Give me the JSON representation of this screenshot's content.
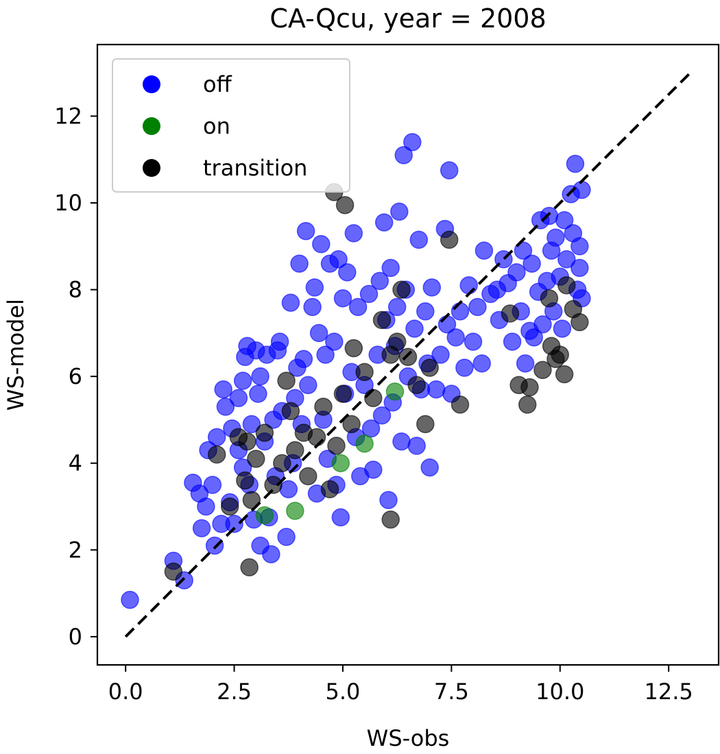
{
  "chart_data": {
    "type": "scatter",
    "title": "CA-Qcu, year = 2008",
    "xlabel": "WS-obs",
    "ylabel": "WS-model",
    "xlim": [
      -0.65,
      13.65
    ],
    "ylim": [
      -0.65,
      13.65
    ],
    "xticks": [
      0.0,
      2.5,
      5.0,
      7.5,
      10.0,
      12.5
    ],
    "xtick_labels": [
      "0.0",
      "2.5",
      "5.0",
      "7.5",
      "10.0",
      "12.5"
    ],
    "yticks": [
      0,
      2,
      4,
      6,
      8,
      10,
      12
    ],
    "ytick_labels": [
      "0",
      "2",
      "4",
      "6",
      "8",
      "10",
      "12"
    ],
    "grid": false,
    "legend_position": "top-left",
    "reference_line": {
      "style": "dashed",
      "color": "#000000",
      "x": [
        0,
        13
      ],
      "y": [
        0,
        13
      ]
    },
    "marker_alpha": 0.6,
    "series": [
      {
        "name": "off",
        "color": "#0000ff",
        "points": [
          [
            0.1,
            0.85
          ],
          [
            1.1,
            1.75
          ],
          [
            1.35,
            1.3
          ],
          [
            1.55,
            3.55
          ],
          [
            1.7,
            3.3
          ],
          [
            1.75,
            2.5
          ],
          [
            1.85,
            3.0
          ],
          [
            1.9,
            4.3
          ],
          [
            2.0,
            3.5
          ],
          [
            2.05,
            2.1
          ],
          [
            2.1,
            4.6
          ],
          [
            2.2,
            2.6
          ],
          [
            2.25,
            5.7
          ],
          [
            2.3,
            5.3
          ],
          [
            2.4,
            3.1
          ],
          [
            2.45,
            4.8
          ],
          [
            2.5,
            2.6
          ],
          [
            2.6,
            5.5
          ],
          [
            2.6,
            4.3
          ],
          [
            2.7,
            3.9
          ],
          [
            2.7,
            5.9
          ],
          [
            2.75,
            6.45
          ],
          [
            2.8,
            6.7
          ],
          [
            2.85,
            3.5
          ],
          [
            2.9,
            4.9
          ],
          [
            2.95,
            2.7
          ],
          [
            3.0,
            6.6
          ],
          [
            3.05,
            5.6
          ],
          [
            3.1,
            6.0
          ],
          [
            3.1,
            2.1
          ],
          [
            3.2,
            4.5
          ],
          [
            3.25,
            6.5
          ],
          [
            3.3,
            2.75
          ],
          [
            3.35,
            1.9
          ],
          [
            3.4,
            5.0
          ],
          [
            3.45,
            3.7
          ],
          [
            3.5,
            6.6
          ],
          [
            3.55,
            6.8
          ],
          [
            3.6,
            5.2
          ],
          [
            3.7,
            2.3
          ],
          [
            3.75,
            3.4
          ],
          [
            3.8,
            7.7
          ],
          [
            3.85,
            4.0
          ],
          [
            3.9,
            5.5
          ],
          [
            3.95,
            6.2
          ],
          [
            4.0,
            8.6
          ],
          [
            4.05,
            4.9
          ],
          [
            4.1,
            6.4
          ],
          [
            4.15,
            9.35
          ],
          [
            4.2,
            5.8
          ],
          [
            4.3,
            7.6
          ],
          [
            4.35,
            8.05
          ],
          [
            4.4,
            3.3
          ],
          [
            4.45,
            7.0
          ],
          [
            4.5,
            9.05
          ],
          [
            4.55,
            5.0
          ],
          [
            4.6,
            6.5
          ],
          [
            4.65,
            4.1
          ],
          [
            4.7,
            8.6
          ],
          [
            4.8,
            6.8
          ],
          [
            4.85,
            3.5
          ],
          [
            4.9,
            8.7
          ],
          [
            4.95,
            2.75
          ],
          [
            5.0,
            7.8
          ],
          [
            5.05,
            5.6
          ],
          [
            5.1,
            8.4
          ],
          [
            5.2,
            6.1
          ],
          [
            5.25,
            9.3
          ],
          [
            5.3,
            4.6
          ],
          [
            5.35,
            7.6
          ],
          [
            5.4,
            3.7
          ],
          [
            5.5,
            5.8
          ],
          [
            5.6,
            7.9
          ],
          [
            5.65,
            4.8
          ],
          [
            5.7,
            3.85
          ],
          [
            5.8,
            6.5
          ],
          [
            5.85,
            8.2
          ],
          [
            5.9,
            5.1
          ],
          [
            5.95,
            9.55
          ],
          [
            6.0,
            7.3
          ],
          [
            6.05,
            3.15
          ],
          [
            6.1,
            8.5
          ],
          [
            6.15,
            5.4
          ],
          [
            6.2,
            6.7
          ],
          [
            6.25,
            7.6
          ],
          [
            6.3,
            9.8
          ],
          [
            6.35,
            4.5
          ],
          [
            6.4,
            11.1
          ],
          [
            6.45,
            8.0
          ],
          [
            6.5,
            6.0
          ],
          [
            6.6,
            11.4
          ],
          [
            6.65,
            7.1
          ],
          [
            6.7,
            4.4
          ],
          [
            6.75,
            9.15
          ],
          [
            6.8,
            5.7
          ],
          [
            6.9,
            7.5
          ],
          [
            6.95,
            6.3
          ],
          [
            7.0,
            3.9
          ],
          [
            7.05,
            8.05
          ],
          [
            7.15,
            5.7
          ],
          [
            7.25,
            6.5
          ],
          [
            7.35,
            9.4
          ],
          [
            7.4,
            7.2
          ],
          [
            7.45,
            10.75
          ],
          [
            7.5,
            5.6
          ],
          [
            7.6,
            6.9
          ],
          [
            7.7,
            7.5
          ],
          [
            7.8,
            6.2
          ],
          [
            7.9,
            8.1
          ],
          [
            8.0,
            6.8
          ],
          [
            8.1,
            7.6
          ],
          [
            8.2,
            6.3
          ],
          [
            8.25,
            8.9
          ],
          [
            8.4,
            7.9
          ],
          [
            8.55,
            8.0
          ],
          [
            8.6,
            7.3
          ],
          [
            8.7,
            8.7
          ],
          [
            8.8,
            8.15
          ],
          [
            8.9,
            6.8
          ],
          [
            9.0,
            8.4
          ],
          [
            9.1,
            7.5
          ],
          [
            9.15,
            8.9
          ],
          [
            9.2,
            6.3
          ],
          [
            9.3,
            7.05
          ],
          [
            9.35,
            8.6
          ],
          [
            9.4,
            6.9
          ],
          [
            9.5,
            7.95
          ],
          [
            9.55,
            9.6
          ],
          [
            9.6,
            7.2
          ],
          [
            9.7,
            8.2
          ],
          [
            9.75,
            9.7
          ],
          [
            9.8,
            8.9
          ],
          [
            9.85,
            7.5
          ],
          [
            9.9,
            9.2
          ],
          [
            10.0,
            8.3
          ],
          [
            10.05,
            7.1
          ],
          [
            10.1,
            9.6
          ],
          [
            10.15,
            8.7
          ],
          [
            10.25,
            10.2
          ],
          [
            10.3,
            9.3
          ],
          [
            10.35,
            10.9
          ],
          [
            10.4,
            8.0
          ],
          [
            10.45,
            9.0
          ],
          [
            10.5,
            10.3
          ],
          [
            10.5,
            7.8
          ],
          [
            10.45,
            8.5
          ]
        ]
      },
      {
        "name": "on",
        "color": "#008000",
        "points": [
          [
            3.2,
            2.8
          ],
          [
            3.9,
            2.9
          ],
          [
            4.95,
            4.0
          ],
          [
            5.5,
            4.45
          ],
          [
            6.2,
            5.65
          ]
        ]
      },
      {
        "name": "transition",
        "color": "#000000",
        "points": [
          [
            1.1,
            1.5
          ],
          [
            2.1,
            4.2
          ],
          [
            2.4,
            3.0
          ],
          [
            2.6,
            4.6
          ],
          [
            2.75,
            3.6
          ],
          [
            2.8,
            4.5
          ],
          [
            2.85,
            1.6
          ],
          [
            2.9,
            3.15
          ],
          [
            3.0,
            4.1
          ],
          [
            3.2,
            4.7
          ],
          [
            3.4,
            3.5
          ],
          [
            3.6,
            4.0
          ],
          [
            3.7,
            5.9
          ],
          [
            3.8,
            5.2
          ],
          [
            3.9,
            4.3
          ],
          [
            4.1,
            4.7
          ],
          [
            4.2,
            3.7
          ],
          [
            4.4,
            4.6
          ],
          [
            4.55,
            5.3
          ],
          [
            4.7,
            3.4
          ],
          [
            4.8,
            10.25
          ],
          [
            4.85,
            4.4
          ],
          [
            5.0,
            5.6
          ],
          [
            5.05,
            9.95
          ],
          [
            5.2,
            4.9
          ],
          [
            5.25,
            6.65
          ],
          [
            5.5,
            6.1
          ],
          [
            5.7,
            5.5
          ],
          [
            5.9,
            7.3
          ],
          [
            6.1,
            6.5
          ],
          [
            6.1,
            2.7
          ],
          [
            6.25,
            6.8
          ],
          [
            6.35,
            8.0
          ],
          [
            6.5,
            6.45
          ],
          [
            6.7,
            5.8
          ],
          [
            6.9,
            4.9
          ],
          [
            7.0,
            6.2
          ],
          [
            7.45,
            9.15
          ],
          [
            7.7,
            5.35
          ],
          [
            8.85,
            7.45
          ],
          [
            9.05,
            5.8
          ],
          [
            9.25,
            5.35
          ],
          [
            9.3,
            5.75
          ],
          [
            9.6,
            6.15
          ],
          [
            9.75,
            7.8
          ],
          [
            9.8,
            6.7
          ],
          [
            9.9,
            6.4
          ],
          [
            10.0,
            6.5
          ],
          [
            10.1,
            6.05
          ],
          [
            10.15,
            8.1
          ],
          [
            10.3,
            7.55
          ],
          [
            10.45,
            7.25
          ]
        ]
      }
    ]
  }
}
